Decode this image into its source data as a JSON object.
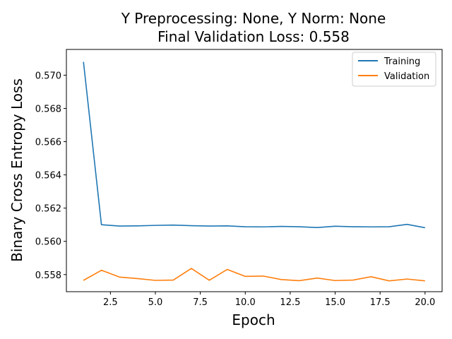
{
  "chart_data": {
    "type": "line",
    "title": [
      "Y Preprocessing: None, Y Norm: None",
      "Final Validation Loss: 0.558"
    ],
    "xlabel": "Epoch",
    "ylabel": "Binary Cross Entropy Loss",
    "xlim": [
      0.05,
      20.95
    ],
    "ylim": [
      0.55697,
      0.57155
    ],
    "xticks": [
      "2.5",
      "5.0",
      "7.5",
      "10.0",
      "12.5",
      "15.0",
      "17.5",
      "20.0"
    ],
    "yticks": [
      "0.558",
      "0.560",
      "0.562",
      "0.564",
      "0.566",
      "0.568",
      "0.570"
    ],
    "grid": false,
    "legend_position": "top-right",
    "x": [
      1,
      2,
      3,
      4,
      5,
      6,
      7,
      8,
      9,
      10,
      11,
      12,
      13,
      14,
      15,
      16,
      17,
      18,
      19,
      20
    ],
    "series": [
      {
        "name": "Training",
        "color": "#1f77b4",
        "values": [
          0.5708,
          0.561,
          0.56092,
          0.56093,
          0.56096,
          0.56098,
          0.56094,
          0.56092,
          0.56093,
          0.56088,
          0.56087,
          0.5609,
          0.56088,
          0.56083,
          0.56091,
          0.56088,
          0.56087,
          0.56088,
          0.56102,
          0.56082
        ]
      },
      {
        "name": "Validation",
        "color": "#ff7f0e",
        "values": [
          0.55765,
          0.55826,
          0.55785,
          0.55776,
          0.55765,
          0.55767,
          0.55837,
          0.55766,
          0.55831,
          0.55789,
          0.55791,
          0.5577,
          0.55763,
          0.55779,
          0.55764,
          0.55767,
          0.55787,
          0.55762,
          0.55773,
          0.55762
        ]
      }
    ]
  }
}
